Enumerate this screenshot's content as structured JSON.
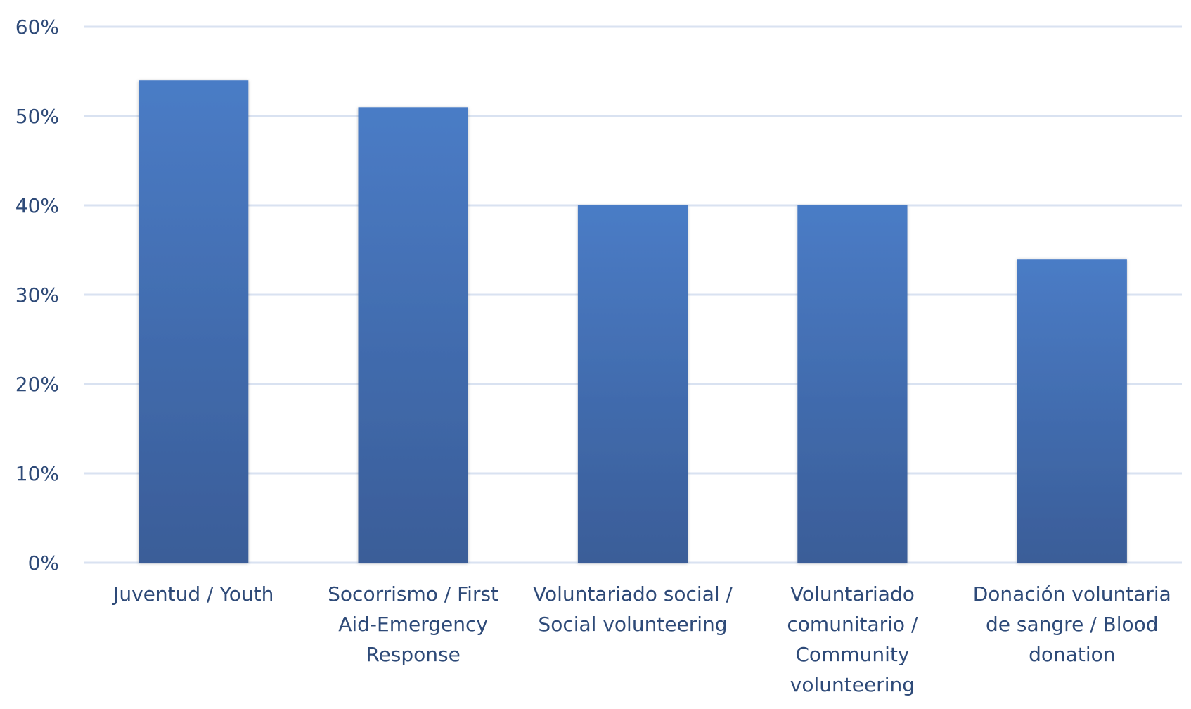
{
  "chart_data": {
    "type": "bar",
    "title": "",
    "xlabel": "",
    "ylabel": "",
    "ylim": [
      0,
      60
    ],
    "yticks": [
      0,
      10,
      20,
      30,
      40,
      50,
      60
    ],
    "ytick_labels": [
      "0%",
      "10%",
      "20%",
      "30%",
      "40%",
      "50%",
      "60%"
    ],
    "grid": true,
    "legend": "none",
    "categories": [
      [
        "Juventud / Youth"
      ],
      [
        "Socorrismo / First",
        "Aid-Emergency",
        "Response"
      ],
      [
        "Voluntariado social /",
        "Social volunteering"
      ],
      [
        "Voluntariado",
        "comunitario /",
        "Community",
        "volunteering"
      ],
      [
        "Donación voluntaria",
        "de sangre / Blood",
        "donation"
      ]
    ],
    "values": [
      54,
      51,
      40,
      40,
      34
    ],
    "unit": "%",
    "colors": {
      "bar_top": "#4A7CC6",
      "bar_bottom": "#3A5D98",
      "grid": "#D9E2F1",
      "text": "#2E4A78"
    }
  }
}
